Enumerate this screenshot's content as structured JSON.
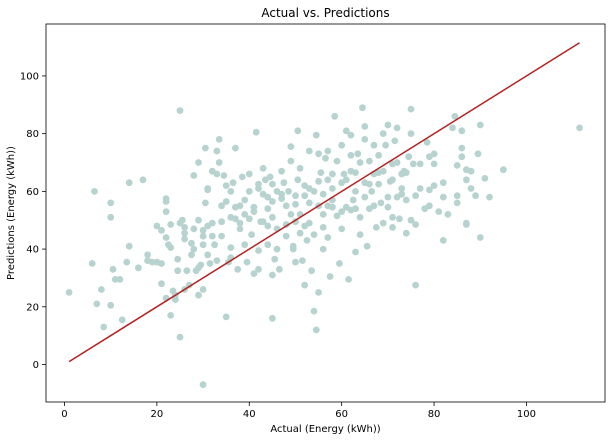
{
  "chart_data": {
    "type": "scatter",
    "title": "Actual vs. Predictions",
    "xlabel": "Actual (Energy (kWh))",
    "ylabel": "Predictions (Energy (kWh))",
    "xlim": [
      -4,
      117
    ],
    "ylim": [
      -13,
      118
    ],
    "x_ticks": [
      0,
      20,
      40,
      60,
      80,
      100
    ],
    "y_ticks": [
      0,
      20,
      40,
      60,
      80,
      100
    ],
    "grid": false,
    "colors": {
      "points": "#b7d3d0",
      "line": "#b22222"
    },
    "series": [
      {
        "type": "scatter",
        "points": [
          [
            1,
            25
          ],
          [
            6,
            35
          ],
          [
            6.5,
            60
          ],
          [
            7,
            21
          ],
          [
            8,
            26
          ],
          [
            8.5,
            13
          ],
          [
            10,
            56
          ],
          [
            10,
            51
          ],
          [
            10.5,
            33
          ],
          [
            10,
            20.5
          ],
          [
            11,
            29.5
          ],
          [
            12,
            29.5
          ],
          [
            12.5,
            15.5
          ],
          [
            13.5,
            35.5
          ],
          [
            14,
            41
          ],
          [
            14,
            63
          ],
          [
            16,
            33.5
          ],
          [
            17,
            64
          ],
          [
            18,
            38
          ],
          [
            18,
            36
          ],
          [
            19,
            35.5
          ],
          [
            20,
            35.5
          ],
          [
            20,
            48
          ],
          [
            21,
            46.5
          ],
          [
            21,
            35
          ],
          [
            21,
            28
          ],
          [
            22,
            23
          ],
          [
            22,
            53
          ],
          [
            22,
            56.5
          ],
          [
            22,
            57.5
          ],
          [
            22,
            44
          ],
          [
            22.5,
            41.5
          ],
          [
            23,
            40.5
          ],
          [
            23,
            48.5
          ],
          [
            23,
            17
          ],
          [
            23.5,
            25.5
          ],
          [
            24,
            22.5
          ],
          [
            24,
            24
          ],
          [
            24.5,
            36.5
          ],
          [
            24.5,
            32.5
          ],
          [
            25,
            9.5
          ],
          [
            25,
            88
          ],
          [
            25,
            49
          ],
          [
            25.5,
            50
          ],
          [
            26,
            47.5
          ],
          [
            26,
            45.5
          ],
          [
            26,
            43.5
          ],
          [
            26,
            26
          ],
          [
            26.5,
            32.5
          ],
          [
            27,
            27.5
          ],
          [
            27.5,
            42
          ],
          [
            27.5,
            38
          ],
          [
            28,
            40
          ],
          [
            28,
            47
          ],
          [
            28,
            65.5
          ],
          [
            28.5,
            32.5
          ],
          [
            29,
            50
          ],
          [
            29,
            33.5
          ],
          [
            29,
            24
          ],
          [
            29,
            70
          ],
          [
            29.5,
            34.5
          ],
          [
            30,
            26
          ],
          [
            30,
            44.5
          ],
          [
            30,
            46.5
          ],
          [
            30,
            41.5
          ],
          [
            30,
            -7
          ],
          [
            30.5,
            75
          ],
          [
            30.5,
            56
          ],
          [
            31,
            48
          ],
          [
            31,
            38
          ],
          [
            31,
            60.5
          ],
          [
            31,
            61
          ],
          [
            31.5,
            35
          ],
          [
            32,
            44.5
          ],
          [
            32,
            49
          ],
          [
            32,
            67
          ],
          [
            32.5,
            41.5
          ],
          [
            33,
            74
          ],
          [
            33,
            66
          ],
          [
            33,
            36
          ],
          [
            33.5,
            70
          ],
          [
            33.5,
            78
          ],
          [
            34,
            49.5
          ],
          [
            34,
            55
          ],
          [
            34,
            44.5
          ],
          [
            34.5,
            65.5
          ],
          [
            35,
            16.5
          ],
          [
            35,
            62
          ],
          [
            35,
            56.5
          ],
          [
            35.5,
            35.5
          ],
          [
            36,
            37
          ],
          [
            36,
            40.5
          ],
          [
            36,
            51
          ],
          [
            36,
            60
          ],
          [
            36.5,
            63
          ],
          [
            37,
            50.5
          ],
          [
            37,
            75
          ],
          [
            37,
            54.5
          ],
          [
            37.5,
            33
          ],
          [
            38,
            49
          ],
          [
            38,
            55
          ],
          [
            38,
            47
          ],
          [
            38.5,
            65
          ],
          [
            39,
            57
          ],
          [
            39,
            52
          ],
          [
            39,
            41.5
          ],
          [
            39.5,
            35.5
          ],
          [
            40,
            50.5
          ],
          [
            40,
            60
          ],
          [
            40,
            66
          ],
          [
            40.5,
            45
          ],
          [
            41,
            31.5
          ],
          [
            41,
            53
          ],
          [
            41,
            54.5
          ],
          [
            41.5,
            80.5
          ],
          [
            42,
            61
          ],
          [
            42,
            62.5
          ],
          [
            42,
            39.5
          ],
          [
            42,
            33
          ],
          [
            42.5,
            49.5
          ],
          [
            43,
            49.5
          ],
          [
            43,
            59
          ],
          [
            43,
            68
          ],
          [
            43.5,
            64
          ],
          [
            44,
            48
          ],
          [
            44,
            54
          ],
          [
            44,
            58
          ],
          [
            44,
            41.5
          ],
          [
            44.5,
            65
          ],
          [
            45,
            62.5
          ],
          [
            45,
            51
          ],
          [
            45,
            56.5
          ],
          [
            45,
            31
          ],
          [
            45,
            16
          ],
          [
            45.5,
            36.5
          ],
          [
            46,
            47
          ],
          [
            46,
            40
          ],
          [
            46,
            60
          ],
          [
            46.5,
            33
          ],
          [
            47,
            57.5
          ],
          [
            47,
            59
          ],
          [
            47,
            67
          ],
          [
            47.5,
            63
          ],
          [
            48,
            48.5
          ],
          [
            48,
            44.5
          ],
          [
            48,
            55
          ],
          [
            48.5,
            60
          ],
          [
            49,
            75.5
          ],
          [
            49,
            70.5
          ],
          [
            49,
            52
          ],
          [
            49.5,
            40
          ],
          [
            49.5,
            41
          ],
          [
            50,
            49.5
          ],
          [
            50,
            55.5
          ],
          [
            50,
            58.5
          ],
          [
            50,
            35.5
          ],
          [
            50.5,
            64
          ],
          [
            50.5,
            81
          ],
          [
            51,
            45.5
          ],
          [
            51,
            52
          ],
          [
            51,
            68
          ],
          [
            51.5,
            36
          ],
          [
            52,
            48
          ],
          [
            52,
            58.5
          ],
          [
            52,
            62
          ],
          [
            52,
            27.5
          ],
          [
            52.5,
            43
          ],
          [
            53,
            49
          ],
          [
            53,
            56
          ],
          [
            53,
            61
          ],
          [
            53,
            74
          ],
          [
            53.5,
            32.5
          ],
          [
            54,
            18.5
          ],
          [
            54,
            45
          ],
          [
            54,
            60
          ],
          [
            54.5,
            79.5
          ],
          [
            54.5,
            12
          ],
          [
            55,
            25
          ],
          [
            55,
            55
          ],
          [
            55,
            63.5
          ],
          [
            55,
            73
          ],
          [
            55.5,
            66.5
          ],
          [
            56,
            40
          ],
          [
            56,
            47.5
          ],
          [
            56,
            52
          ],
          [
            56,
            59
          ],
          [
            56.5,
            71.5
          ],
          [
            57,
            44
          ],
          [
            57,
            55
          ],
          [
            57,
            64
          ],
          [
            57,
            74
          ],
          [
            57.5,
            30.5
          ],
          [
            58,
            54.5
          ],
          [
            58,
            57
          ],
          [
            58,
            66
          ],
          [
            58,
            61
          ],
          [
            58.5,
            86
          ],
          [
            59,
            70.5
          ],
          [
            59,
            51.5
          ],
          [
            59.5,
            35
          ],
          [
            60,
            53
          ],
          [
            60,
            63
          ],
          [
            60,
            76
          ],
          [
            60,
            47
          ],
          [
            60.5,
            66
          ],
          [
            61,
            64
          ],
          [
            61,
            54.5
          ],
          [
            61,
            81
          ],
          [
            61.5,
            29.5
          ],
          [
            62,
            53.5
          ],
          [
            62,
            67
          ],
          [
            62,
            79.5
          ],
          [
            62,
            72.5
          ],
          [
            62.5,
            57
          ],
          [
            63,
            54
          ],
          [
            63,
            60
          ],
          [
            63,
            66.5
          ],
          [
            63,
            39
          ],
          [
            63.5,
            73
          ],
          [
            64,
            45
          ],
          [
            64,
            70
          ],
          [
            64,
            51
          ],
          [
            64.5,
            89
          ],
          [
            65,
            63
          ],
          [
            65,
            58
          ],
          [
            65,
            78
          ],
          [
            65,
            82.5
          ],
          [
            65.5,
            41
          ],
          [
            66,
            70.5
          ],
          [
            66,
            62.5
          ],
          [
            66,
            54
          ],
          [
            66.5,
            60
          ],
          [
            67,
            76
          ],
          [
            67,
            55
          ],
          [
            67,
            66
          ],
          [
            67.5,
            47.5
          ],
          [
            68,
            62.5
          ],
          [
            68,
            66.5
          ],
          [
            68,
            72.5
          ],
          [
            68.5,
            56
          ],
          [
            69,
            80
          ],
          [
            69,
            49
          ],
          [
            69,
            67
          ],
          [
            69.5,
            76
          ],
          [
            70,
            58
          ],
          [
            70,
            83
          ],
          [
            70,
            54.5
          ],
          [
            70.5,
            63.5
          ],
          [
            71,
            47.5
          ],
          [
            71,
            51
          ],
          [
            71,
            64
          ],
          [
            71,
            69.5
          ],
          [
            71.5,
            77.5
          ],
          [
            72,
            58
          ],
          [
            72,
            70
          ],
          [
            72,
            82
          ],
          [
            72.5,
            50.5
          ],
          [
            73,
            66
          ],
          [
            73,
            61
          ],
          [
            73,
            59
          ],
          [
            73.5,
            67
          ],
          [
            74,
            45.5
          ],
          [
            74,
            57
          ],
          [
            74,
            66.5
          ],
          [
            74.5,
            72
          ],
          [
            75,
            88.5
          ],
          [
            75,
            50
          ],
          [
            75,
            80
          ],
          [
            75.5,
            69.5
          ],
          [
            76,
            27.5
          ],
          [
            76,
            58.5
          ],
          [
            76,
            48.5
          ],
          [
            77,
            61
          ],
          [
            77,
            69.5
          ],
          [
            78,
            54
          ],
          [
            78.5,
            77
          ],
          [
            79,
            72
          ],
          [
            79,
            60.5
          ],
          [
            79,
            55
          ],
          [
            80,
            73
          ],
          [
            80,
            69.5
          ],
          [
            80,
            62
          ],
          [
            81,
            53
          ],
          [
            82,
            43
          ],
          [
            82,
            58
          ],
          [
            82,
            63
          ],
          [
            83,
            52
          ],
          [
            84,
            82
          ],
          [
            84.5,
            86
          ],
          [
            85,
            56
          ],
          [
            85,
            58.5
          ],
          [
            85,
            69
          ],
          [
            86,
            81
          ],
          [
            86,
            75
          ],
          [
            86,
            72
          ],
          [
            87,
            48.5
          ],
          [
            87,
            49
          ],
          [
            87,
            67.5
          ],
          [
            87,
            64
          ],
          [
            88,
            67
          ],
          [
            88,
            61
          ],
          [
            89,
            58.5
          ],
          [
            89.5,
            73
          ],
          [
            90,
            83
          ],
          [
            90,
            44
          ],
          [
            91,
            64.5
          ],
          [
            92,
            58
          ],
          [
            95,
            67.5
          ],
          [
            111.5,
            82
          ]
        ]
      },
      {
        "type": "line",
        "points": [
          [
            1,
            1
          ],
          [
            111.5,
            111.5
          ]
        ]
      }
    ]
  }
}
